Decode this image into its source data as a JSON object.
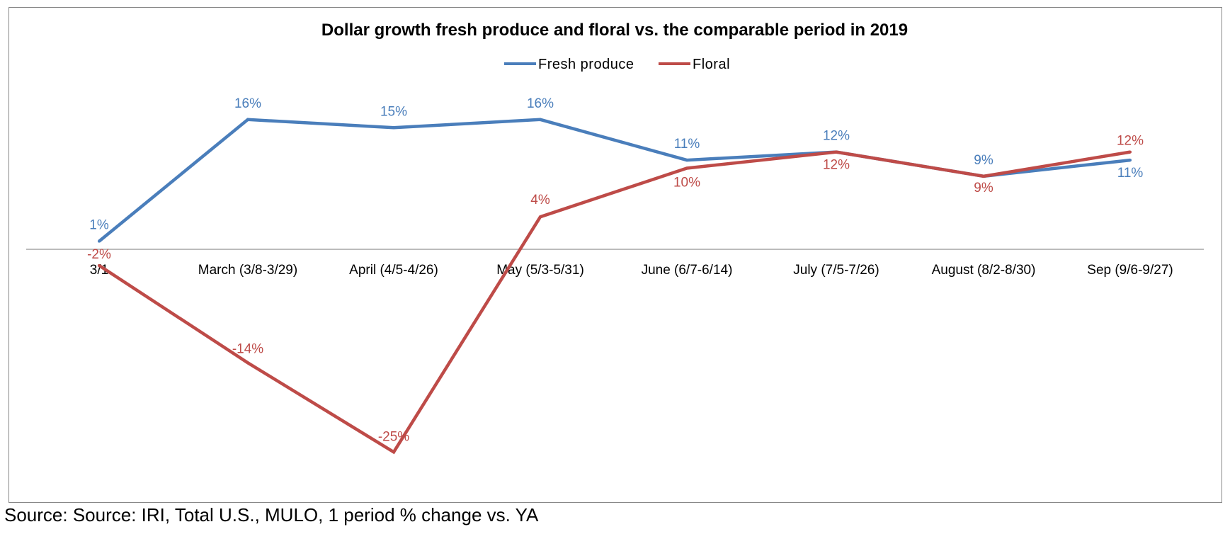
{
  "chart_data": {
    "type": "line",
    "title": "Dollar growth fresh produce and floral vs. the comparable period in 2019",
    "categories": [
      "3/1",
      "March (3/8-3/29)",
      "April (4/5-4/26)",
      "May (5/3-5/31)",
      "June (6/7-6/14)",
      "July (7/5-7/26)",
      "August (8/2-8/30)",
      "Sep (9/6-9/27)"
    ],
    "series": [
      {
        "name": "Fresh produce",
        "color": "#4a7ebb",
        "values": [
          1,
          16,
          15,
          16,
          11,
          12,
          9,
          11
        ],
        "labels": [
          "1%",
          "16%",
          "15%",
          "16%",
          "11%",
          "12%",
          "9%",
          "11%"
        ]
      },
      {
        "name": "Floral",
        "color": "#be4b48",
        "values": [
          -2,
          -14,
          -25,
          4,
          10,
          12,
          9,
          12
        ],
        "labels": [
          "-2%",
          "-14%",
          "-25%",
          "4%",
          "10%",
          "12%",
          "9%",
          "12%"
        ]
      }
    ],
    "xlabel": "",
    "ylabel": "",
    "legend": "top-center",
    "grid": false
  },
  "footer": {
    "source": "Source: Source: IRI, Total U.S., MULO, 1 period % change vs. YA"
  }
}
